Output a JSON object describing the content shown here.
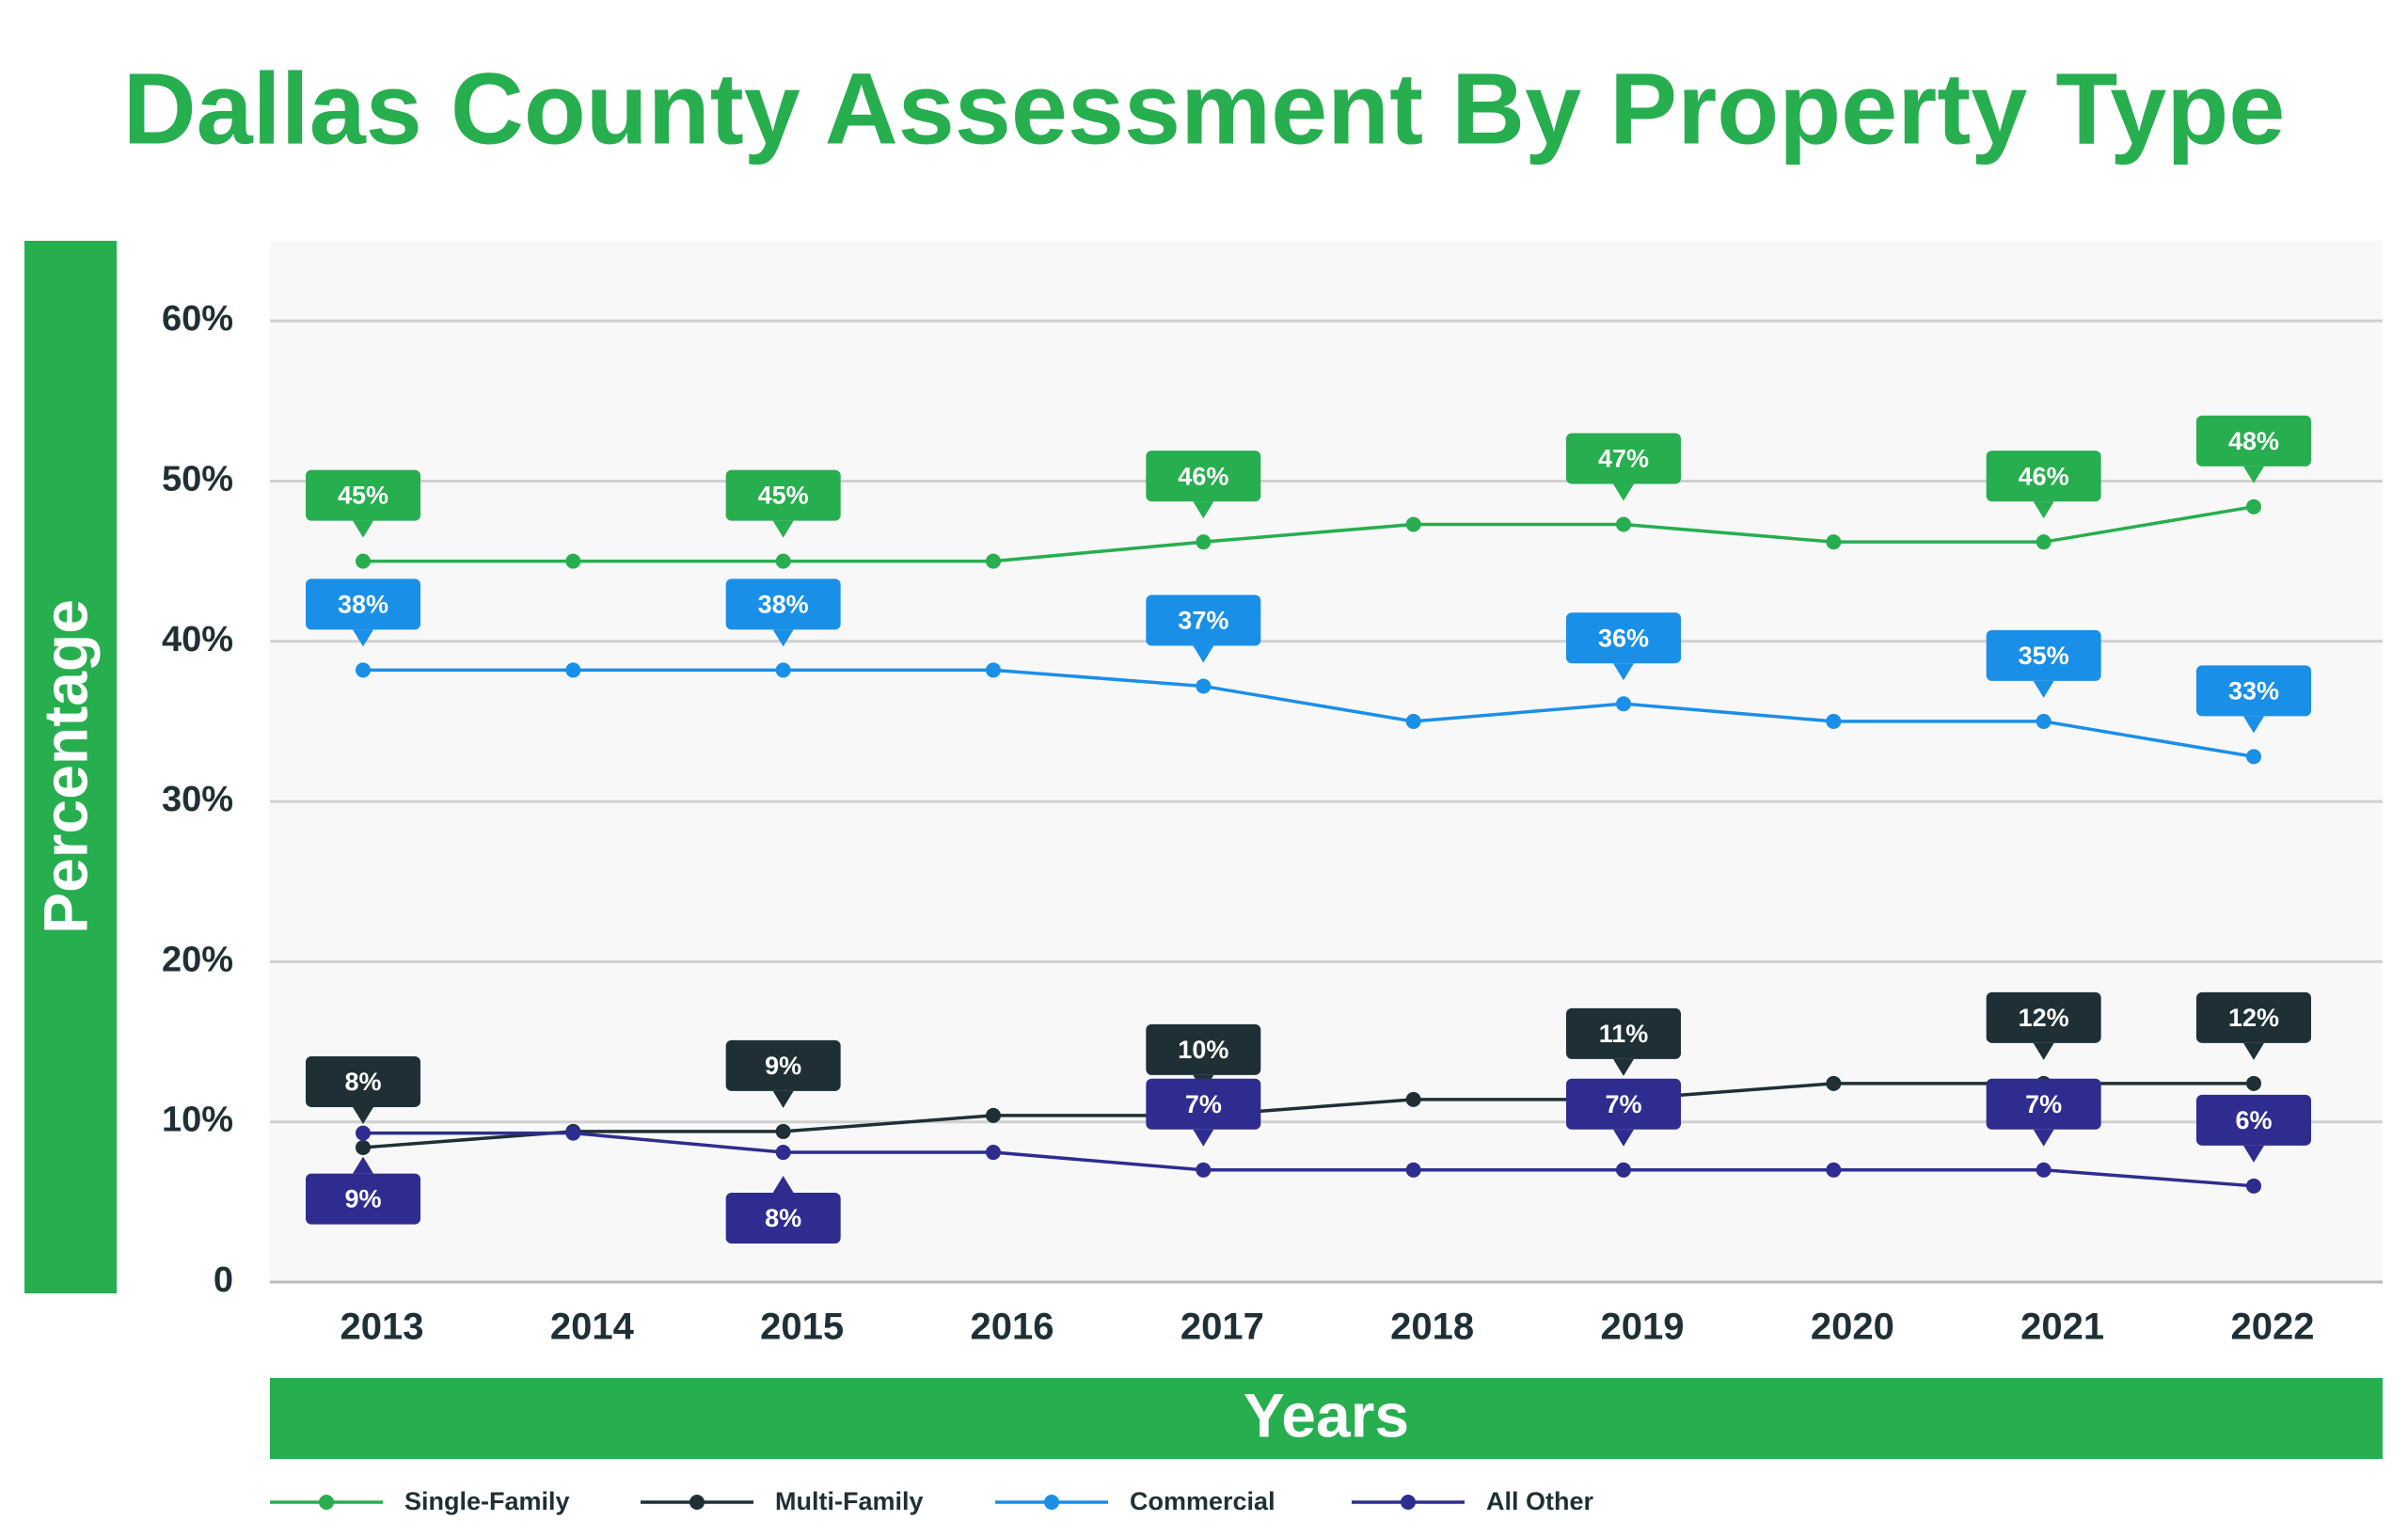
{
  "chart_data": {
    "type": "line",
    "title": "Dallas County Assessment By Property Type",
    "y_label": "Percentage",
    "x_label": "Years",
    "categories": [
      "2013",
      "2014",
      "2015",
      "2016",
      "2017",
      "2018",
      "2019",
      "2020",
      "2021",
      "2022"
    ],
    "series": [
      {
        "name": "Single-Family",
        "color": "#27ae4f",
        "values": [
          45,
          45,
          45,
          45,
          46.2,
          47.3,
          47.3,
          46.2,
          46.2,
          48.4
        ],
        "value_labels": [
          "45%",
          null,
          "45%",
          null,
          "46%",
          null,
          "47%",
          null,
          "46%",
          "48%"
        ]
      },
      {
        "name": "Multi-Family",
        "color": "#1e3035",
        "values": [
          8.4,
          9.4,
          9.4,
          10.4,
          10.4,
          11.4,
          11.4,
          12.4,
          12.4,
          12.4
        ],
        "value_labels": [
          "8%",
          null,
          "9%",
          null,
          "10%",
          null,
          "11%",
          null,
          "12%",
          "12%"
        ]
      },
      {
        "name": "Commercial",
        "color": "#1a8fe8",
        "values": [
          38.2,
          38.2,
          38.2,
          38.2,
          37.2,
          35,
          36.1,
          35,
          35,
          32.8
        ],
        "value_labels": [
          "38%",
          null,
          "38%",
          null,
          "37%",
          null,
          "36%",
          null,
          "35%",
          "33%"
        ]
      },
      {
        "name": "All Other",
        "color": "#2e2d8f",
        "values": [
          9.3,
          9.3,
          8.1,
          8.1,
          7,
          7,
          7,
          7,
          7,
          6
        ],
        "value_labels": [
          "9%",
          null,
          "8%",
          null,
          "7%",
          null,
          "7%",
          null,
          "7%",
          "6%"
        ]
      }
    ],
    "ylim": [
      0,
      65
    ],
    "yticks": [
      0,
      {
        "value": 10,
        "label": "10%"
      },
      {
        "value": 20,
        "label": "20%"
      },
      {
        "value": 30,
        "label": "30%"
      },
      {
        "value": 40,
        "label": "40%"
      },
      {
        "value": 50,
        "label": "50%"
      },
      {
        "value": 60,
        "label": "60%"
      }
    ],
    "grid": true,
    "legend": "bottom"
  }
}
